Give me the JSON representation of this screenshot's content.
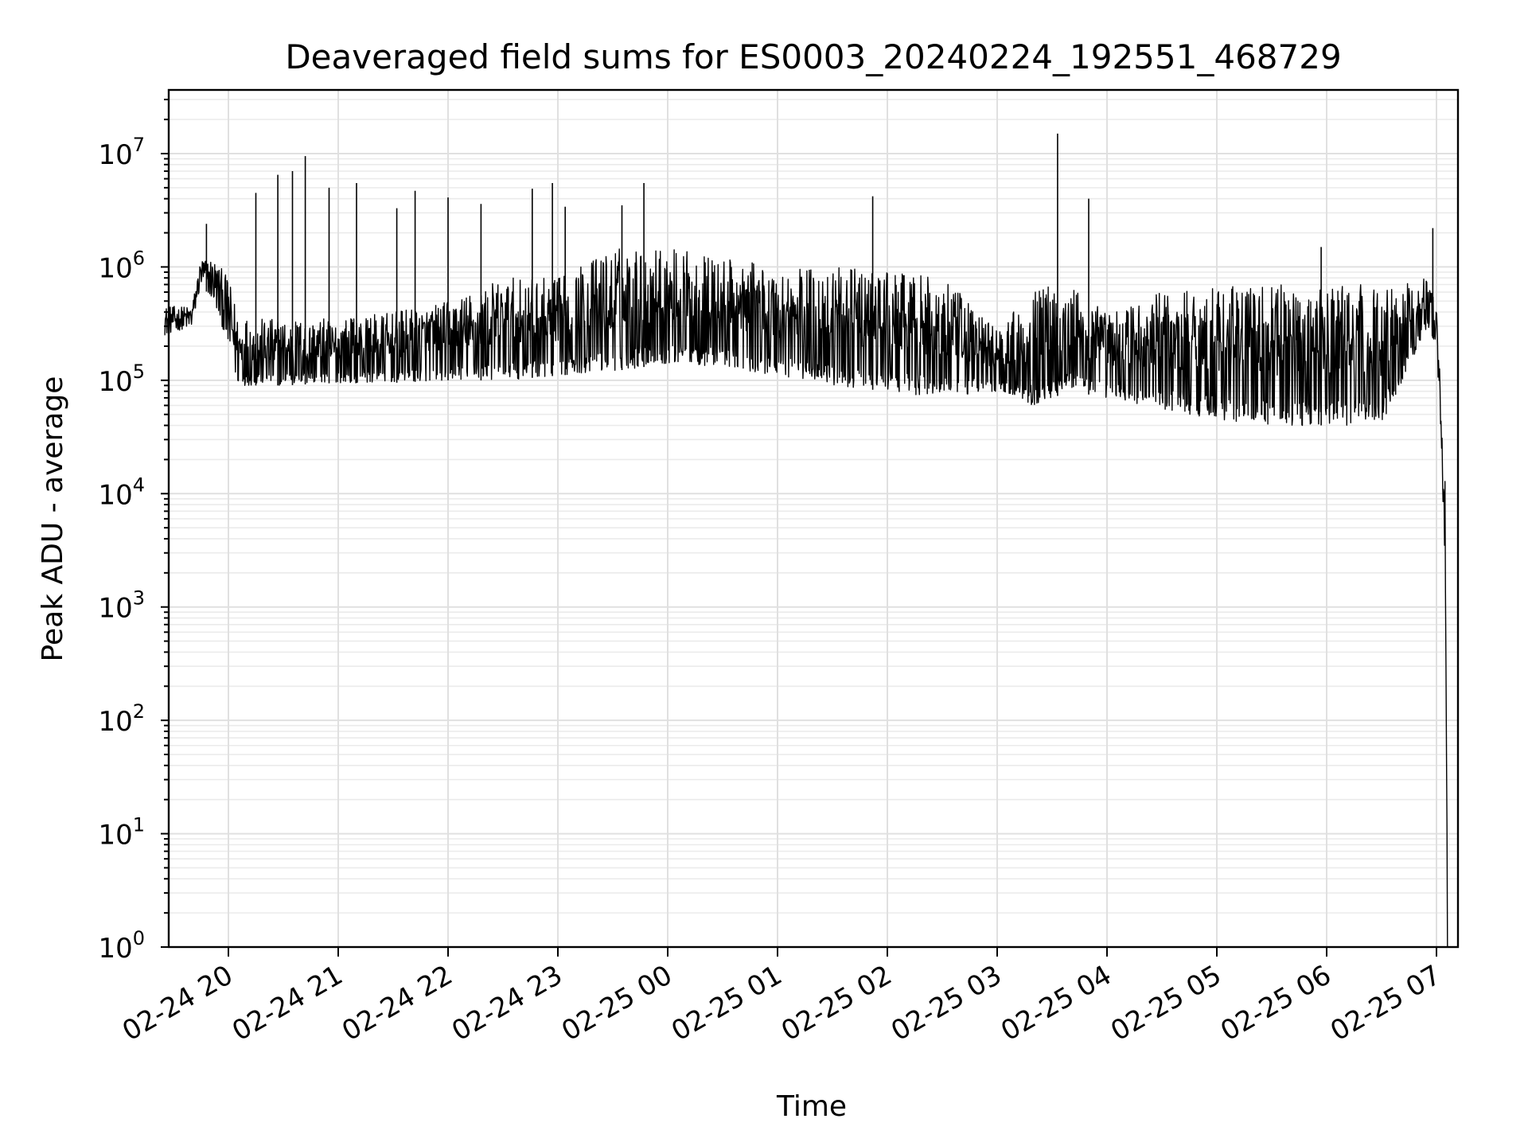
{
  "chart_data": {
    "type": "line",
    "title": "Deaveraged field sums for ES0003_20240224_192551_468729",
    "xlabel": "Time",
    "ylabel": "Peak ADU - average",
    "y_scale": "log",
    "ylim": [
      1,
      30000000
    ],
    "xlim": [
      "2024-02-24 19:25",
      "2024-02-25 07:16"
    ],
    "grid": "on (major and minor)",
    "legend": "none",
    "line_color": "#000000",
    "x_ticks": [
      {
        "value": "2024-02-24 20:00",
        "label": "02-24 20"
      },
      {
        "value": "2024-02-24 21:00",
        "label": "02-24 21"
      },
      {
        "value": "2024-02-24 22:00",
        "label": "02-24 22"
      },
      {
        "value": "2024-02-24 23:00",
        "label": "02-24 23"
      },
      {
        "value": "2024-02-25 00:00",
        "label": "02-25 00"
      },
      {
        "value": "2024-02-25 01:00",
        "label": "02-25 01"
      },
      {
        "value": "2024-02-25 02:00",
        "label": "02-25 02"
      },
      {
        "value": "2024-02-25 03:00",
        "label": "02-25 03"
      },
      {
        "value": "2024-02-25 04:00",
        "label": "02-25 04"
      },
      {
        "value": "2024-02-25 05:00",
        "label": "02-25 05"
      },
      {
        "value": "2024-02-25 06:00",
        "label": "02-25 06"
      },
      {
        "value": "2024-02-25 07:00",
        "label": "02-25 07"
      }
    ],
    "y_ticks": [
      {
        "value": 1,
        "base": "10",
        "exp": "0"
      },
      {
        "value": 10,
        "base": "10",
        "exp": "1"
      },
      {
        "value": 100,
        "base": "10",
        "exp": "2"
      },
      {
        "value": 1000,
        "base": "10",
        "exp": "3"
      },
      {
        "value": 10000,
        "base": "10",
        "exp": "4"
      },
      {
        "value": 100000,
        "base": "10",
        "exp": "5"
      },
      {
        "value": 1000000,
        "base": "10",
        "exp": "6"
      },
      {
        "value": 10000000,
        "base": "10",
        "exp": "7"
      }
    ],
    "envelope": {
      "x": [
        "2024-02-24 19:25",
        "2024-02-24 19:40",
        "2024-02-24 19:45",
        "2024-02-24 19:52",
        "2024-02-24 20:00",
        "2024-02-24 20:05",
        "2024-02-24 20:15",
        "2024-02-24 20:30",
        "2024-02-24 21:00",
        "2024-02-24 21:30",
        "2024-02-24 22:00",
        "2024-02-24 22:30",
        "2024-02-24 23:00",
        "2024-02-24 23:30",
        "2024-02-25 00:00",
        "2024-02-25 00:30",
        "2024-02-25 01:00",
        "2024-02-25 01:30",
        "2024-02-25 02:00",
        "2024-02-25 02:30",
        "2024-02-25 03:00",
        "2024-02-25 03:20",
        "2024-02-25 03:30",
        "2024-02-25 03:40",
        "2024-02-25 04:00",
        "2024-02-25 04:30",
        "2024-02-25 05:00",
        "2024-02-25 05:30",
        "2024-02-25 06:00",
        "2024-02-25 06:30",
        "2024-02-25 06:55",
        "2024-02-25 07:00",
        "2024-02-25 07:03",
        "2024-02-25 07:05",
        "2024-02-25 07:06"
      ],
      "high": [
        450000,
        450000,
        1200000,
        1200000,
        800000,
        400000,
        350000,
        350000,
        350000,
        400000,
        500000,
        800000,
        800000,
        1500000,
        1500000,
        1200000,
        1000000,
        1000000,
        900000,
        800000,
        300000,
        600000,
        800000,
        700000,
        400000,
        600000,
        700000,
        700000,
        700000,
        700000,
        800000,
        500000,
        50000,
        10000,
        1
      ],
      "low": [
        250000,
        300000,
        700000,
        500000,
        200000,
        90000,
        90000,
        90000,
        95000,
        95000,
        100000,
        100000,
        110000,
        120000,
        140000,
        130000,
        110000,
        90000,
        80000,
        70000,
        80000,
        60000,
        70000,
        80000,
        70000,
        55000,
        45000,
        40000,
        40000,
        40000,
        300000,
        200000,
        20000,
        1000,
        1
      ]
    },
    "spikes": [
      {
        "x": "2024-02-24 19:48",
        "y": 2400000
      },
      {
        "x": "2024-02-24 20:15",
        "y": 4500000
      },
      {
        "x": "2024-02-24 20:27",
        "y": 6500000
      },
      {
        "x": "2024-02-24 20:35",
        "y": 7000000
      },
      {
        "x": "2024-02-24 20:42",
        "y": 9500000
      },
      {
        "x": "2024-02-24 20:55",
        "y": 5000000
      },
      {
        "x": "2024-02-24 21:10",
        "y": 5500000
      },
      {
        "x": "2024-02-24 21:32",
        "y": 3300000
      },
      {
        "x": "2024-02-24 21:42",
        "y": 4700000
      },
      {
        "x": "2024-02-24 22:00",
        "y": 4100000
      },
      {
        "x": "2024-02-24 22:18",
        "y": 3600000
      },
      {
        "x": "2024-02-24 22:46",
        "y": 4900000
      },
      {
        "x": "2024-02-24 22:57",
        "y": 5500000
      },
      {
        "x": "2024-02-24 23:04",
        "y": 3400000
      },
      {
        "x": "2024-02-24 23:35",
        "y": 3500000
      },
      {
        "x": "2024-02-24 23:47",
        "y": 5500000
      },
      {
        "x": "2024-02-25 01:52",
        "y": 4200000
      },
      {
        "x": "2024-02-25 03:33",
        "y": 15000000
      },
      {
        "x": "2024-02-25 03:50",
        "y": 4000000
      },
      {
        "x": "2024-02-25 05:57",
        "y": 1500000
      },
      {
        "x": "2024-02-25 06:58",
        "y": 2200000
      }
    ]
  }
}
